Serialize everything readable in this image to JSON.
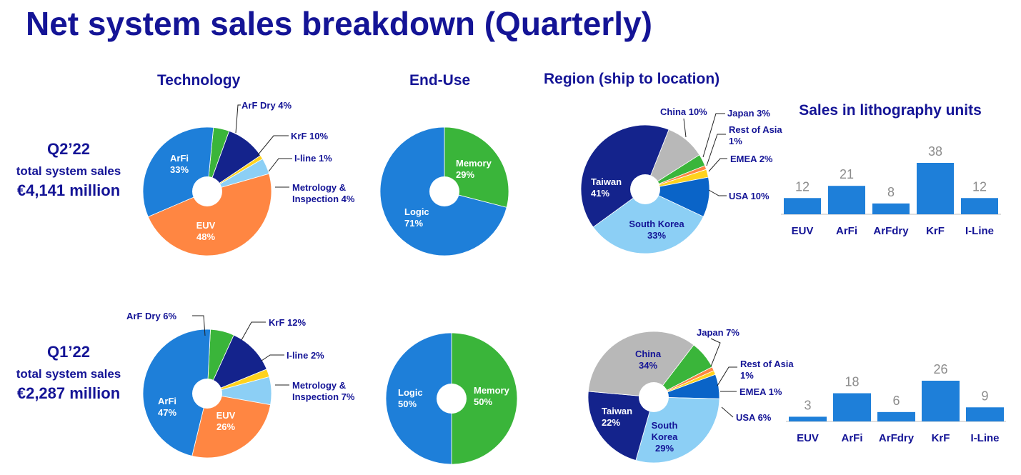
{
  "title": "Net system sales breakdown (Quarterly)",
  "column_titles": {
    "technology": "Technology",
    "end_use": "End-Use",
    "region": "Region (ship to location)",
    "units": "Sales in lithography units"
  },
  "rows": [
    {
      "quarter": "Q2’22",
      "subtitle": "total system sales",
      "amount": "€4,141 million"
    },
    {
      "quarter": "Q1’22",
      "subtitle": "total system sales",
      "amount": "€2,287 million"
    }
  ],
  "colors": {
    "title": "#141496",
    "euv": "#FF8642",
    "arfi": "#1E7FD9",
    "arf_dry": "#3AB53A",
    "krf": "#14238C",
    "iline": "#FFD21E",
    "metrology": "#8CCFF5",
    "memory": "#3AB53A",
    "logic": "#1E7FD9",
    "taiwan": "#14238C",
    "china": "#B8B8B8",
    "japan": "#3AB53A",
    "rest_of_asia": "#FF8642",
    "emea": "#FFD21E",
    "usa": "#0A64C8",
    "south_korea": "#8CCFF5",
    "bar": "#1E7FD9",
    "bar_label": "#8C8C8C"
  },
  "chart_data": [
    {
      "type": "pie",
      "name": "Technology Q2’22",
      "slices": [
        {
          "label": "ArF Dry 4%",
          "value": 4
        },
        {
          "label": "KrF 10%",
          "value": 10
        },
        {
          "label": "I-line 1%",
          "value": 1
        },
        {
          "label": "Metrology & Inspection 4%",
          "value": 4
        },
        {
          "label": "EUV 48%",
          "value": 48
        },
        {
          "label": "ArFi 33%",
          "value": 33
        }
      ]
    },
    {
      "type": "pie",
      "name": "End-Use Q2’22",
      "slices": [
        {
          "label": "Memory 29%",
          "value": 29
        },
        {
          "label": "Logic 71%",
          "value": 71
        }
      ]
    },
    {
      "type": "pie",
      "name": "Region Q2’22",
      "slices": [
        {
          "label": "China 10%",
          "value": 10
        },
        {
          "label": "Japan 3%",
          "value": 3
        },
        {
          "label": "Rest of Asia 1%",
          "value": 1
        },
        {
          "label": "EMEA 2%",
          "value": 2
        },
        {
          "label": "USA 10%",
          "value": 10
        },
        {
          "label": "South Korea 33%",
          "value": 33
        },
        {
          "label": "Taiwan 41%",
          "value": 41
        }
      ]
    },
    {
      "type": "bar",
      "name": "Sales in lithography units Q2’22",
      "categories": [
        "EUV",
        "ArFi",
        "ArFdry",
        "KrF",
        "I-Line"
      ],
      "values": [
        12,
        21,
        8,
        38,
        12
      ],
      "ylim": [
        0,
        40
      ]
    },
    {
      "type": "pie",
      "name": "Technology Q1’22",
      "slices": [
        {
          "label": "ArF Dry 6%",
          "value": 6
        },
        {
          "label": "KrF 12%",
          "value": 12
        },
        {
          "label": "I-line 2%",
          "value": 2
        },
        {
          "label": "Metrology & Inspection 7%",
          "value": 7
        },
        {
          "label": "EUV 26%",
          "value": 26
        },
        {
          "label": "ArFi 47%",
          "value": 47
        }
      ]
    },
    {
      "type": "pie",
      "name": "End-Use Q1’22",
      "slices": [
        {
          "label": "Memory 50%",
          "value": 50
        },
        {
          "label": "Logic 50%",
          "value": 50
        }
      ]
    },
    {
      "type": "pie",
      "name": "Region Q1’22",
      "slices": [
        {
          "label": "Japan 7%",
          "value": 7
        },
        {
          "label": "Rest of Asia 1%",
          "value": 1
        },
        {
          "label": "EMEA 1%",
          "value": 1
        },
        {
          "label": "USA 6%",
          "value": 6
        },
        {
          "label": "South Korea 29%",
          "value": 29
        },
        {
          "label": "Taiwan 22%",
          "value": 22
        },
        {
          "label": "China 34%",
          "value": 34
        }
      ]
    },
    {
      "type": "bar",
      "name": "Sales in lithography units Q1’22",
      "categories": [
        "EUV",
        "ArFi",
        "ArFdry",
        "KrF",
        "I-Line"
      ],
      "values": [
        3,
        18,
        6,
        26,
        9
      ],
      "ylim": [
        0,
        40
      ]
    }
  ]
}
